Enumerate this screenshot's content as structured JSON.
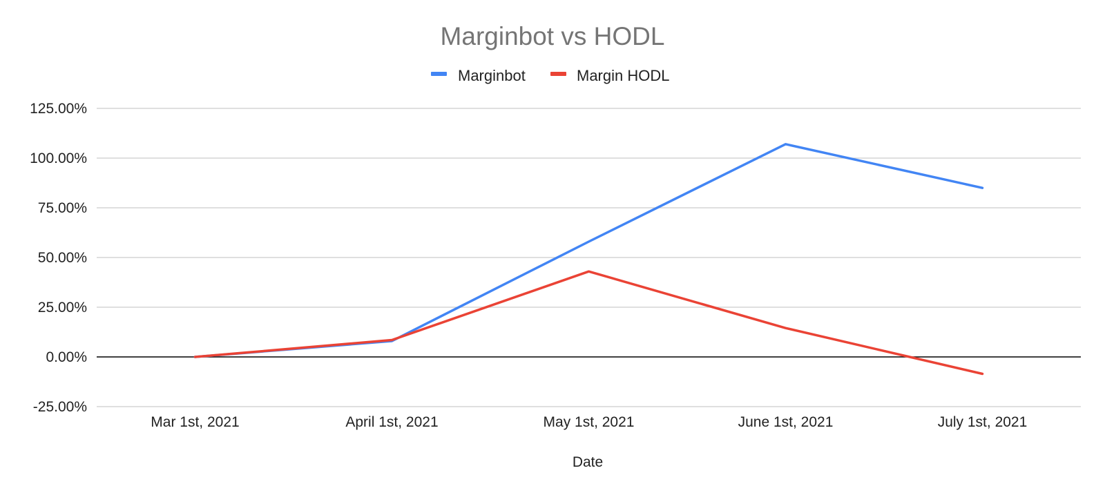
{
  "chart_data": {
    "type": "line",
    "title": "Marginbot vs HODL",
    "xlabel": "Date",
    "ylabel": "",
    "categories": [
      "Mar 1st, 2021",
      "April 1st, 2021",
      "May 1st, 2021",
      "June 1st, 2021",
      "July 1st, 2021"
    ],
    "series": [
      {
        "name": "Marginbot",
        "color": "#4285f4",
        "values": [
          0,
          8,
          58,
          107,
          85
        ]
      },
      {
        "name": "Margin HODL",
        "color": "#ea4335",
        "values": [
          0,
          8.5,
          43,
          14.5,
          -8.5
        ]
      }
    ],
    "ylim": [
      -25,
      125
    ],
    "yticks": [
      125,
      100,
      75,
      50,
      25,
      0,
      -25
    ],
    "ytick_labels": [
      "125.00%",
      "100.00%",
      "75.00%",
      "50.00%",
      "25.00%",
      "0.00%",
      "-25.00%"
    ],
    "grid": true,
    "legend_position": "top"
  }
}
